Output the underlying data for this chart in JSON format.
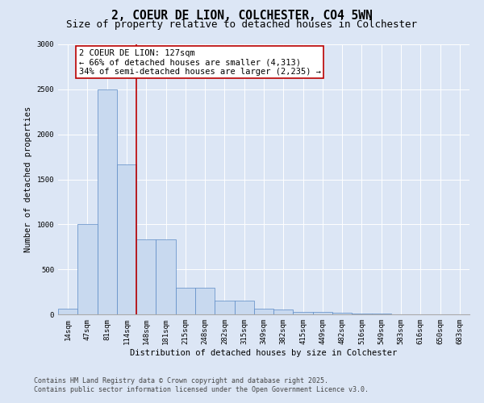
{
  "title_line1": "2, COEUR DE LION, COLCHESTER, CO4 5WN",
  "title_line2": "Size of property relative to detached houses in Colchester",
  "xlabel": "Distribution of detached houses by size in Colchester",
  "ylabel": "Number of detached properties",
  "categories": [
    "14sqm",
    "47sqm",
    "81sqm",
    "114sqm",
    "148sqm",
    "181sqm",
    "215sqm",
    "248sqm",
    "282sqm",
    "315sqm",
    "349sqm",
    "382sqm",
    "415sqm",
    "449sqm",
    "482sqm",
    "516sqm",
    "549sqm",
    "583sqm",
    "616sqm",
    "650sqm",
    "683sqm"
  ],
  "values": [
    60,
    1000,
    2500,
    1670,
    830,
    830,
    300,
    300,
    150,
    150,
    60,
    50,
    30,
    30,
    20,
    10,
    5,
    2,
    0,
    0,
    0
  ],
  "bar_color": "#c8d9ef",
  "bar_edge_color": "#5b8ac5",
  "vline_color": "#bb0000",
  "vline_xindex": 3.5,
  "annotation_text": "2 COEUR DE LION: 127sqm\n← 66% of detached houses are smaller (4,313)\n34% of semi-detached houses are larger (2,235) →",
  "annotation_box_edge": "#bb0000",
  "ylim": [
    0,
    3000
  ],
  "yticks": [
    0,
    500,
    1000,
    1500,
    2000,
    2500,
    3000
  ],
  "background_color": "#dce6f5",
  "plot_bg_color": "#dce6f5",
  "footer_line1": "Contains HM Land Registry data © Crown copyright and database right 2025.",
  "footer_line2": "Contains public sector information licensed under the Open Government Licence v3.0.",
  "title_fontsize": 10.5,
  "subtitle_fontsize": 9,
  "axis_label_fontsize": 7.5,
  "tick_fontsize": 6.5,
  "annotation_fontsize": 7.5,
  "footer_fontsize": 6
}
